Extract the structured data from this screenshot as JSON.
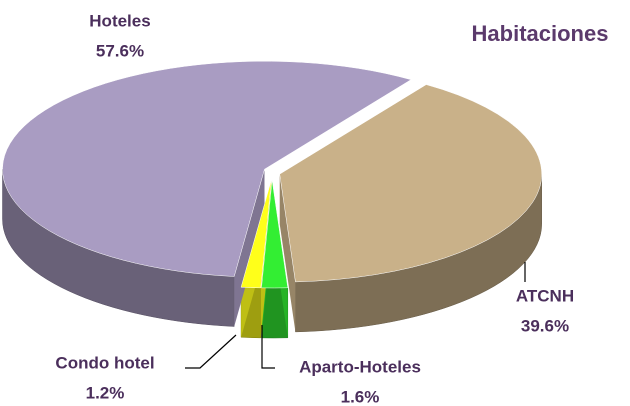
{
  "chart_data": {
    "type": "pie",
    "title": "Habitaciones",
    "categories": [
      "ATCNH",
      "Aparto-Hoteles",
      "Condo hotel",
      "Hoteles"
    ],
    "values": [
      39.6,
      1.6,
      1.2,
      57.6
    ],
    "value_labels": [
      "39.6%",
      "1.6%",
      "1.2%",
      "57.6%"
    ],
    "colors": [
      "#c9b189",
      "#33ee33",
      "#ffff1a",
      "#a99cc2"
    ]
  }
}
